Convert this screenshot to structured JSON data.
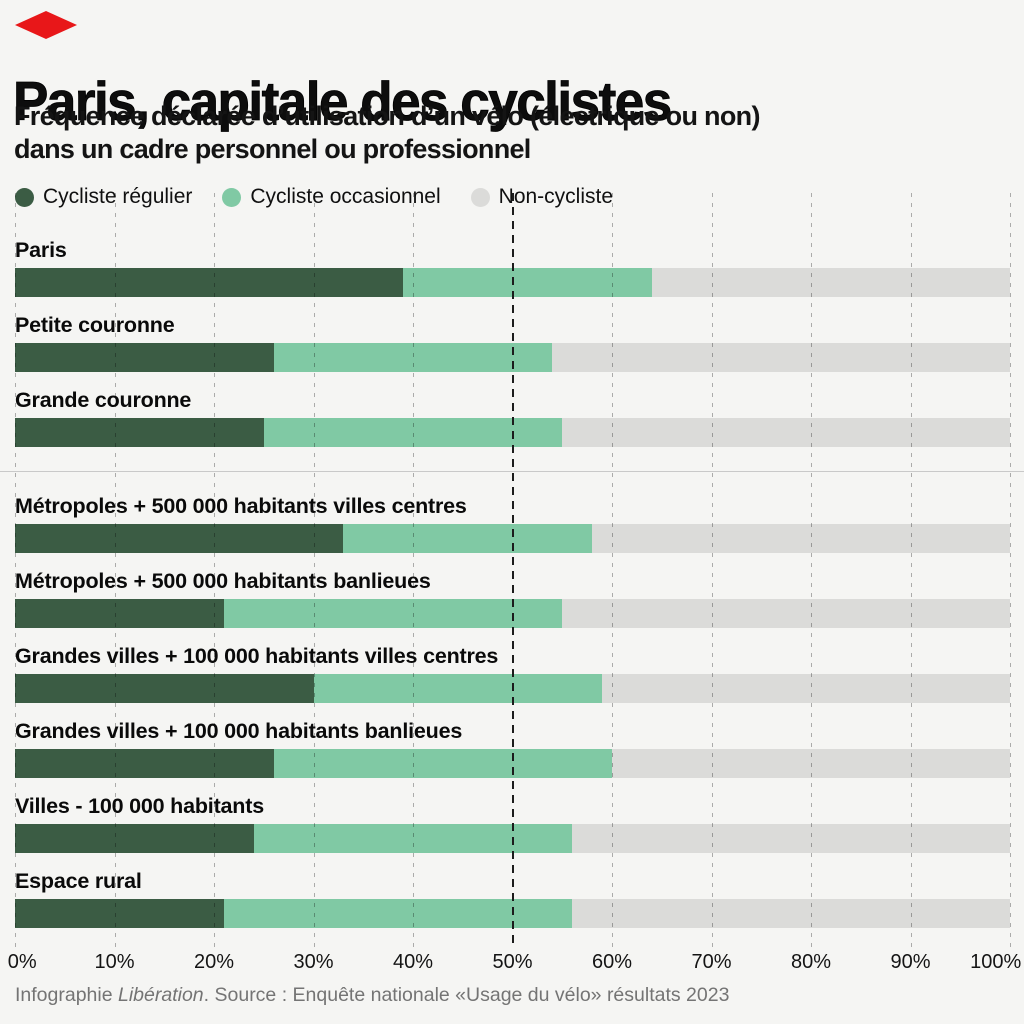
{
  "header": {
    "title": "Paris, capitale des cyclistes",
    "subtitle_line1": "Fréquence déclarée d’utilisation d’un vélo (électrique ou non)",
    "subtitle_line2": "dans un cadre personnel ou professionnel",
    "logo": "liberation-red-diamond",
    "brand_color": "#e81719"
  },
  "legend": [
    {
      "label": "Cycliste régulier",
      "color": "#3b5c44"
    },
    {
      "label": "Cycliste occasionnel",
      "color": "#80c9a4"
    },
    {
      "label": "Non-cycliste",
      "color": "#dbdbd9"
    }
  ],
  "chart_data": {
    "type": "bar",
    "stacked": true,
    "orientation": "horizontal",
    "unit": "percent",
    "series_names": [
      "Cycliste régulier",
      "Cycliste occasionnel",
      "Non-cycliste"
    ],
    "colors": {
      "cycliste_regulier": "#3b5c44",
      "cycliste_occasionnel": "#80c9a4",
      "non_cycliste": "#dbdbd9",
      "background": "#f5f5f3",
      "gridline": "#b3b3b3",
      "gridline_emphasized": "#1c1c1c"
    },
    "x_axis": {
      "min": 0,
      "max": 100,
      "tick_step": 10,
      "tick_labels": [
        "0%",
        "10%",
        "20%",
        "30%",
        "40%",
        "50%",
        "60%",
        "70%",
        "80%",
        "90%",
        "100%"
      ],
      "emphasized_tick": 50,
      "grid": true
    },
    "legend_position": "top",
    "groups": [
      {
        "name": "ile-de-france",
        "rows": [
          {
            "label": "Paris",
            "regulier": 39,
            "occasionnel": 25,
            "non_cycliste": 36
          },
          {
            "label": "Petite couronne",
            "regulier": 26,
            "occasionnel": 28,
            "non_cycliste": 46
          },
          {
            "label": "Grande couronne",
            "regulier": 25,
            "occasionnel": 30,
            "non_cycliste": 45
          }
        ]
      },
      {
        "name": "autres-territoires",
        "rows": [
          {
            "label": "Métropoles + 500 000 habitants villes centres",
            "regulier": 33,
            "occasionnel": 25,
            "non_cycliste": 42
          },
          {
            "label": "Métropoles + 500 000 habitants banlieues",
            "regulier": 21,
            "occasionnel": 34,
            "non_cycliste": 45
          },
          {
            "label": "Grandes villes + 100 000 habitants villes centres",
            "regulier": 30,
            "occasionnel": 29,
            "non_cycliste": 41
          },
          {
            "label": "Grandes villes + 100 000 habitants banlieues",
            "regulier": 26,
            "occasionnel": 34,
            "non_cycliste": 40
          },
          {
            "label": "Villes - 100 000 habitants",
            "regulier": 24,
            "occasionnel": 32,
            "non_cycliste": 44
          },
          {
            "label": "Espace rural",
            "regulier": 21,
            "occasionnel": 35,
            "non_cycliste": 44
          }
        ]
      }
    ]
  },
  "footer": {
    "prefix": "Infographie ",
    "brand": "Libération",
    "suffix": ". Source : Enquête nationale «Usage du vélo» résultats 2023"
  }
}
